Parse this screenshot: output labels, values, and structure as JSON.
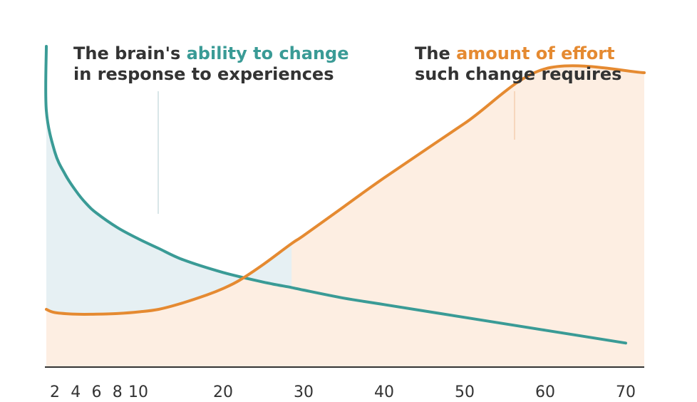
{
  "annotations": {
    "ability": {
      "line1_prefix": "The brain's ",
      "line1_highlight": "ability to change",
      "line2": "in response to experiences"
    },
    "effort": {
      "line1_prefix": "The ",
      "line1_highlight": "amount of effort",
      "line2": "such change requires"
    }
  },
  "colors": {
    "teal": "#3a9b96",
    "orange": "#e58a31",
    "teal_fill": "#e6f0f3",
    "orange_fill": "#fdeee2",
    "axis": "#333333",
    "leader": "#d9e6e8",
    "leader_orange": "#f6d7bd"
  },
  "chart_data": {
    "type": "line",
    "title": "",
    "xlabel": "",
    "ylabel": "",
    "xlim": [
      1,
      71
    ],
    "ylim": [
      0,
      100
    ],
    "x_ticks": [
      2,
      4,
      6,
      8,
      10,
      20,
      30,
      40,
      50,
      60,
      70
    ],
    "series": [
      {
        "name": "The brain's ability to change in response to experiences",
        "color": "#3a9b96",
        "x": [
          0.5,
          1,
          2,
          3,
          4,
          5,
          6,
          8,
          10,
          12,
          15,
          20,
          25,
          28.5,
          30,
          35,
          40,
          50,
          60,
          70
        ],
        "y": [
          100,
          80,
          67,
          60,
          55,
          51,
          48,
          43.5,
          40,
          37,
          33.5,
          29.5,
          26.5,
          24.8,
          24,
          21.5,
          19.5,
          15.5,
          11.5,
          7.5
        ]
      },
      {
        "name": "The amount of effort such change requires",
        "color": "#e58a31",
        "x": [
          0.5,
          2,
          4,
          6,
          8,
          10,
          12,
          15,
          18,
          20,
          22,
          25,
          28.5,
          30,
          35,
          40,
          50,
          60,
          70
        ],
        "y": [
          18,
          17,
          16.5,
          16.5,
          16.7,
          17.2,
          18,
          20,
          22.5,
          24.5,
          27,
          32,
          38.5,
          41,
          50,
          59,
          76,
          93,
          90
        ]
      }
    ]
  }
}
